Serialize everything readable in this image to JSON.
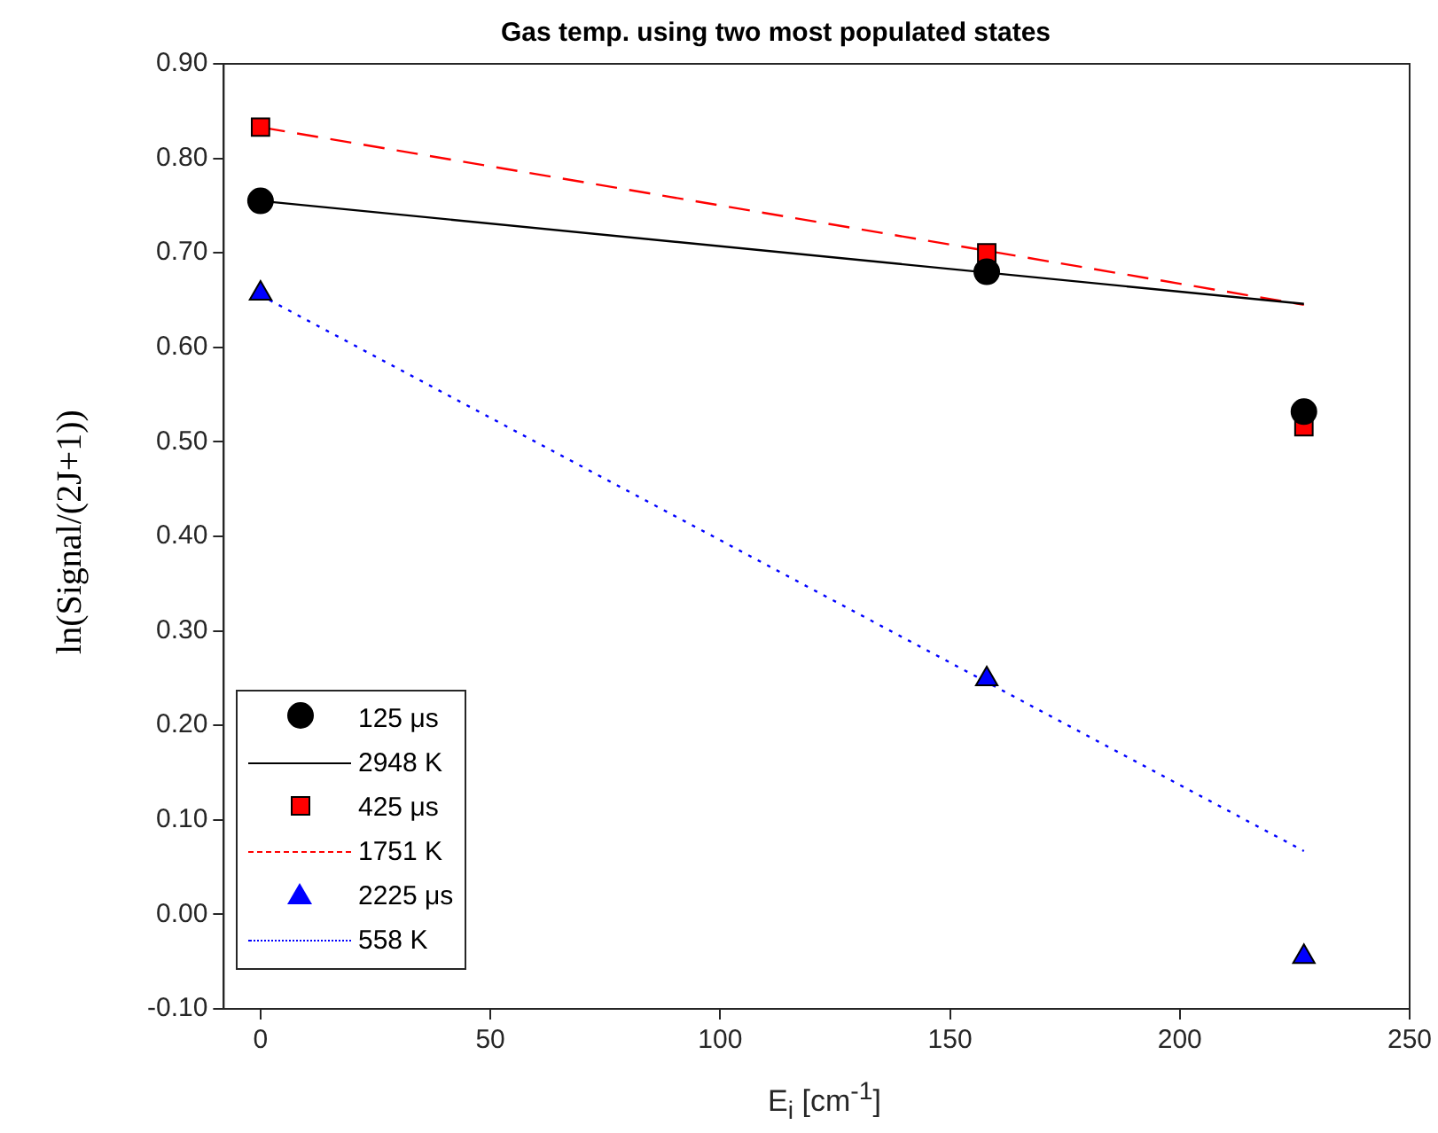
{
  "chart_data": {
    "type": "scatter",
    "title": "Gas temp. using two most populated states",
    "xlabel": "E$_{i}$ [cm$^{-1}$]",
    "ylabel": "ln(Signal/(2J+1))",
    "x": [
      0,
      158,
      227
    ],
    "series": [
      {
        "name": "125 μs",
        "type": "scatter",
        "marker": "circle",
        "color": "#000000",
        "values": [
          0.755,
          0.68,
          0.532
        ]
      },
      {
        "name": "2948 K",
        "type": "line",
        "marker": "none",
        "line_style": "solid",
        "color": "#000000",
        "values": [
          0.755,
          null,
          0.646
        ]
      },
      {
        "name": "425 μs",
        "type": "scatter",
        "marker": "square",
        "color": "#ff0000",
        "values": [
          0.833,
          0.7,
          0.516
        ]
      },
      {
        "name": "1751 K",
        "type": "line",
        "marker": "none",
        "line_style": "dashed",
        "color": "#ff0000",
        "values": [
          0.833,
          null,
          0.645
        ]
      },
      {
        "name": "2225 μs",
        "type": "scatter",
        "marker": "triangle",
        "color": "#0000ff",
        "values": [
          0.657,
          0.249,
          -0.045
        ]
      },
      {
        "name": "558 K",
        "type": "line",
        "marker": "none",
        "line_style": "dotted",
        "color": "#0000ff",
        "values": [
          0.655,
          null,
          0.067
        ]
      }
    ],
    "xlim": [
      -8,
      250
    ],
    "xticks": [
      0,
      50,
      100,
      150,
      200,
      250
    ],
    "ylim": [
      -0.1,
      0.9
    ],
    "yticks": [
      {
        "value": -0.1,
        "label": "-0.10"
      },
      {
        "value": 0,
        "label": "0.00"
      },
      {
        "value": 0.1,
        "label": "0.10"
      },
      {
        "value": 0.2,
        "label": "0.20"
      },
      {
        "value": 0.3,
        "label": "0.30"
      },
      {
        "value": 0.4,
        "label": "0.40"
      },
      {
        "value": 0.5,
        "label": "0.50"
      },
      {
        "value": 0.6,
        "label": "0.60"
      },
      {
        "value": 0.7,
        "label": "0.70"
      },
      {
        "value": 0.8,
        "label": "0.80"
      },
      {
        "value": 0.9,
        "label": "0.90"
      }
    ],
    "grid": false,
    "legend": "bottom left"
  }
}
